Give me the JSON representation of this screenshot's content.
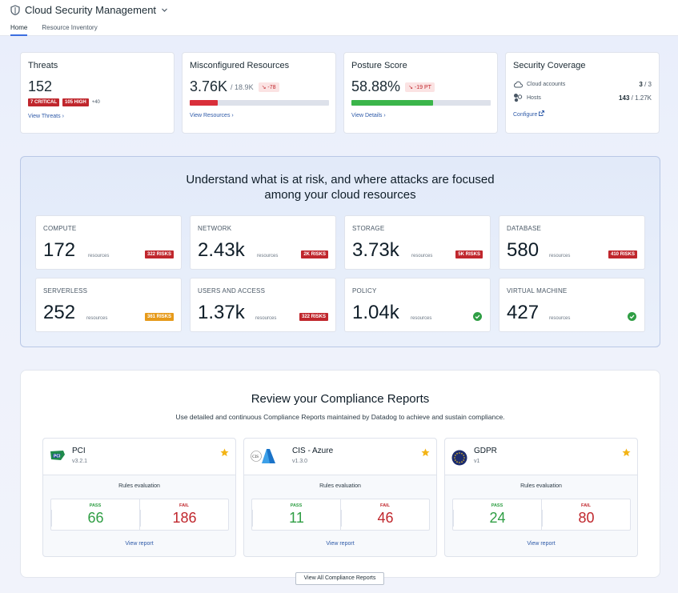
{
  "app": {
    "title": "Cloud Security Management"
  },
  "tabs": [
    {
      "label": "Home"
    },
    {
      "label": "Resource Inventory"
    }
  ],
  "kpis": {
    "threats": {
      "title": "Threats",
      "value": "152",
      "critical": "7 CRITICAL",
      "high": "105 HIGH",
      "more": "+40",
      "link": "View Threats"
    },
    "misconfigured": {
      "title": "Misconfigured Resources",
      "value": "3.76K",
      "of": "/ 18.9K",
      "delta": "-78",
      "progress": 0.2,
      "link": "View Resources"
    },
    "posture": {
      "title": "Posture Score",
      "value": "58.88%",
      "delta": "-19 PT",
      "progress": 0.5888,
      "link": "View Details"
    },
    "coverage": {
      "title": "Security Coverage",
      "cloud_label": "Cloud accounts",
      "cloud_val": "3",
      "cloud_total": "/ 3",
      "hosts_label": "Hosts",
      "hosts_val": "143",
      "hosts_total": "/ 1.27K",
      "link": "Configure"
    }
  },
  "risk": {
    "heading1": "Understand what is at risk, and where attacks are focused",
    "heading2": "among your cloud resources",
    "unit": "resources",
    "cards": [
      {
        "title": "COMPUTE",
        "value": "172",
        "badge": "322 RISKS",
        "status": "red"
      },
      {
        "title": "NETWORK",
        "value": "2.43k",
        "badge": "2K RISKS",
        "status": "red"
      },
      {
        "title": "STORAGE",
        "value": "3.73k",
        "badge": "5K RISKS",
        "status": "red"
      },
      {
        "title": "DATABASE",
        "value": "580",
        "badge": "410 RISKS",
        "status": "red"
      },
      {
        "title": "SERVERLESS",
        "value": "252",
        "badge": "361 RISKS",
        "status": "orange"
      },
      {
        "title": "USERS AND ACCESS",
        "value": "1.37k",
        "badge": "322 RISKS",
        "status": "red"
      },
      {
        "title": "POLICY",
        "value": "1.04k",
        "badge": "",
        "status": "ok"
      },
      {
        "title": "VIRTUAL MACHINE",
        "value": "427",
        "badge": "",
        "status": "ok"
      }
    ]
  },
  "compliance": {
    "heading": "Review your Compliance Reports",
    "subheading": "Use detailed and continuous Compliance Reports maintained by Datadog to achieve and sustain compliance.",
    "rules_label": "Rules evaluation",
    "pass_label": "PASS",
    "fail_label": "FAIL",
    "view_label": "View report",
    "reports": [
      {
        "name": "PCI",
        "version": "v3.2.1",
        "pass": "66",
        "fail": "186"
      },
      {
        "name": "CIS - Azure",
        "version": "v1.3.0",
        "pass": "11",
        "fail": "46"
      },
      {
        "name": "GDPR",
        "version": "v1",
        "pass": "24",
        "fail": "80"
      }
    ],
    "view_all": "View All Compliance Reports"
  },
  "colors": {
    "accent": "#3b6ee0",
    "danger": "#c0272d",
    "success": "#2f9e44",
    "warning": "#e69a1a"
  }
}
